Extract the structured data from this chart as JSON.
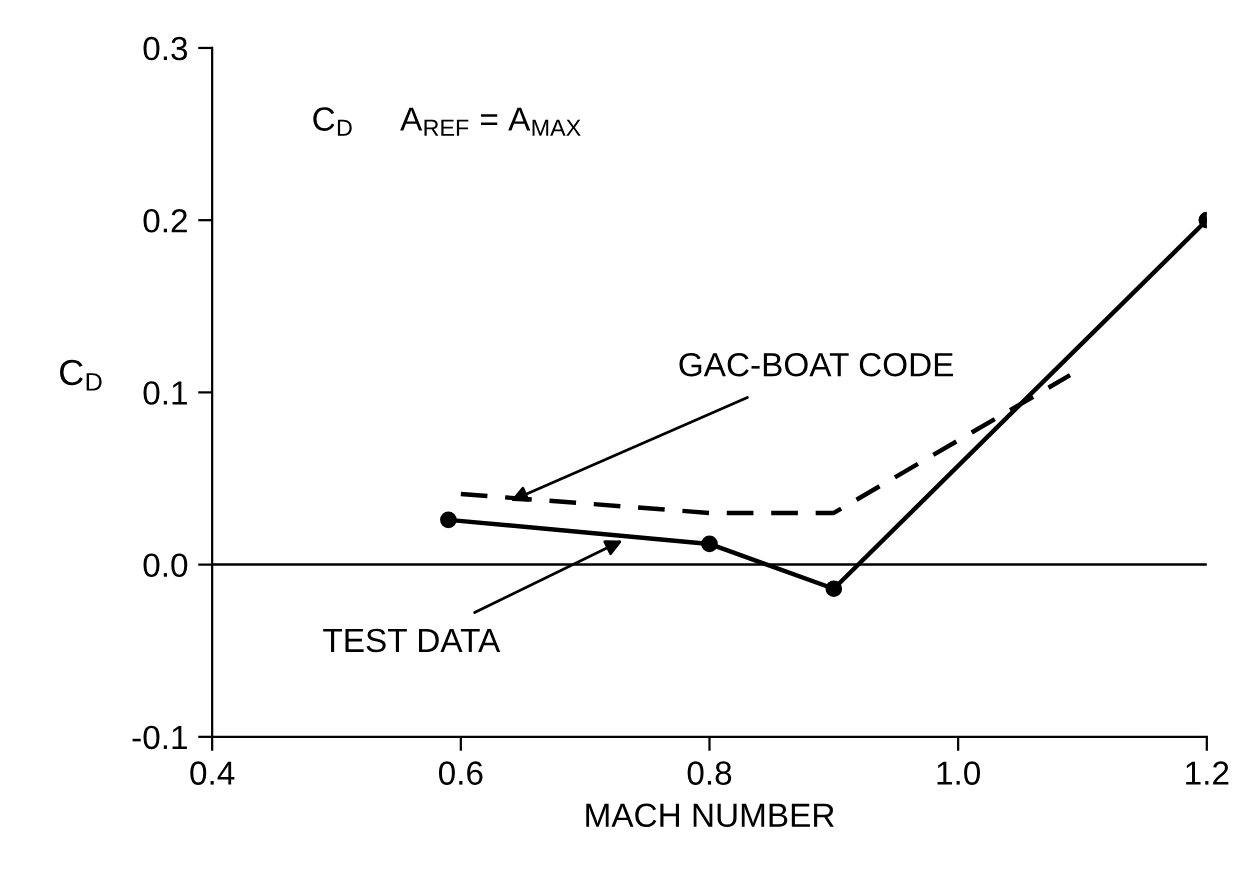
{
  "chart_data": {
    "type": "line",
    "xlabel": "MACH NUMBER",
    "ylabel": "C$_{D}$",
    "x": [
      0.59,
      0.8,
      0.9,
      1.2
    ],
    "series": [
      {
        "values": [
          0.026,
          0.012,
          -0.014,
          0.2
        ],
        "color": "#000000",
        "marker": "circle",
        "line_style": "solid"
      },
      {
        "x": [
          0.6,
          0.8,
          0.9,
          1.09
        ],
        "values": [
          0.041,
          0.03,
          0.03,
          0.11
        ],
        "color": "#000000",
        "marker": "none",
        "line_style": "dashed"
      }
    ],
    "xlim": [
      0.4,
      1.2
    ],
    "xticks": [
      0.4,
      0.6,
      0.8,
      {
        "value": 1.0,
        "label": "1.0"
      },
      1.2
    ],
    "ylim": [
      -0.1,
      0.3
    ],
    "yticks": [
      -0.1,
      {
        "value": 0.0,
        "label": "0.0"
      },
      0.1,
      0.2,
      0.3
    ],
    "ref_lines": [
      {
        "axis": "y",
        "value": 0.0,
        "color": "#000000"
      }
    ],
    "annotations": [
      "C$_{D}$     A$_{REF}$ = A$_{MAX}$",
      {
        "text": "GAC-BOAT CODE",
        "x": 0.64,
        "y": 0.037
      },
      {
        "text": "TEST DATA",
        "x": 0.73,
        "y": 0.014
      }
    ],
    "grid": false,
    "legend": false
  }
}
